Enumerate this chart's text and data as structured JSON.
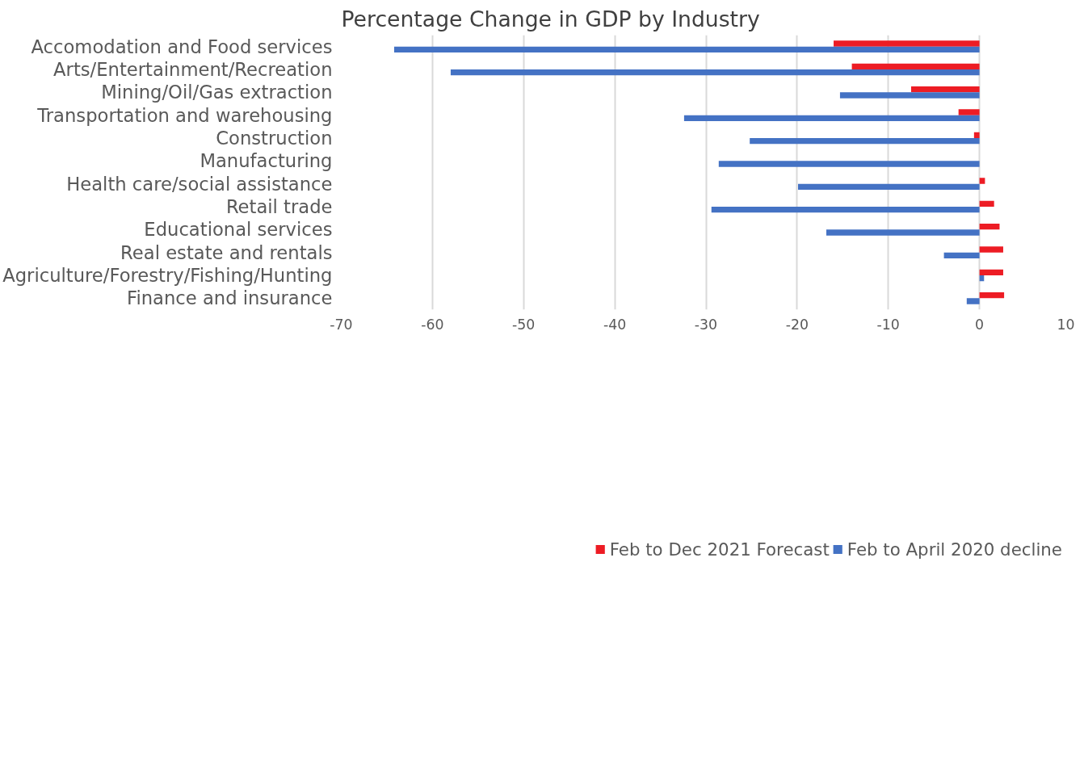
{
  "chart_data": {
    "type": "bar",
    "orientation": "horizontal",
    "title": "Percentage Change in GDP by Industry",
    "categories": [
      "Accomodation and Food services",
      "Arts/Entertainment/Recreation",
      "Mining/Oil/Gas extraction",
      "Transportation and warehousing",
      "Construction",
      "Manufacturing",
      "Health care/social assistance",
      "Retail trade",
      "Educational services",
      "Real estate and rentals",
      "Agriculture/Forestry/Fishing/Hunting",
      "Finance and insurance"
    ],
    "series": [
      {
        "name": "Feb to Dec 2021 Forecast",
        "color": "#ed1c24",
        "values": [
          -16.0,
          -14.0,
          -7.5,
          -2.3,
          -0.6,
          0,
          0.6,
          1.6,
          2.2,
          2.6,
          2.6,
          2.7
        ]
      },
      {
        "name": "Feb to April 2020 decline",
        "color": "#4472c4",
        "values": [
          -64.2,
          -58.0,
          -15.3,
          -32.4,
          -25.2,
          -28.6,
          -19.9,
          -29.4,
          -16.8,
          -3.9,
          0.5,
          -1.4
        ]
      }
    ],
    "xlim": [
      -70,
      10
    ],
    "xticks": [
      -70,
      -60,
      -50,
      -40,
      -30,
      -20,
      -10,
      0,
      10
    ],
    "grid": "x",
    "legend": "bottom"
  }
}
